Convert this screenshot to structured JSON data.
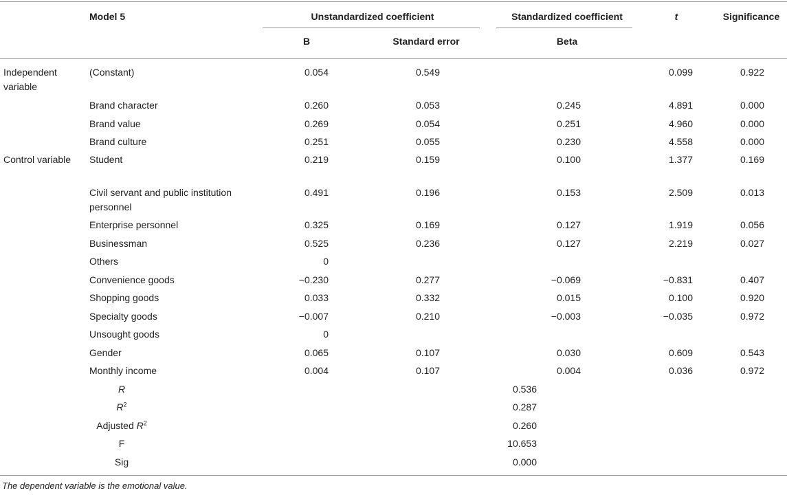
{
  "header": {
    "model": "Model 5",
    "unstd": "Unstandardized coefficient",
    "std": "Standardized coefficient",
    "t": "t",
    "sig": "Significance",
    "b": "B",
    "se": "Standard error",
    "beta": "Beta"
  },
  "groups": {
    "independent": "Independent variable",
    "control": "Control variable"
  },
  "rows": [
    {
      "label": "(Constant)",
      "b": "0.054",
      "se": "0.549",
      "beta": "",
      "t": "0.099",
      "sig": "0.922"
    },
    {
      "label": "Brand character",
      "b": "0.260",
      "se": "0.053",
      "beta": "0.245",
      "t": "4.891",
      "sig": "0.000"
    },
    {
      "label": "Brand value",
      "b": "0.269",
      "se": "0.054",
      "beta": "0.251",
      "t": "4.960",
      "sig": "0.000"
    },
    {
      "label": "Brand culture",
      "b": "0.251",
      "se": "0.055",
      "beta": "0.230",
      "t": "4.558",
      "sig": "0.000"
    },
    {
      "label": "Student",
      "b": "0.219",
      "se": "0.159",
      "beta": "0.100",
      "t": "1.377",
      "sig": "0.169"
    },
    {
      "label": "Civil servant and public institution",
      "label2": "personnel",
      "b": "0.491",
      "se": "0.196",
      "beta": "0.153",
      "t": "2.509",
      "sig": "0.013"
    },
    {
      "label": "Enterprise personnel",
      "b": "0.325",
      "se": "0.169",
      "beta": "0.127",
      "t": "1.919",
      "sig": "0.056"
    },
    {
      "label": "Businessman",
      "b": "0.525",
      "se": "0.236",
      "beta": "0.127",
      "t": "2.219",
      "sig": "0.027"
    },
    {
      "label": "Others",
      "b": "0",
      "se": "",
      "beta": "",
      "t": "",
      "sig": ""
    },
    {
      "label": "Convenience goods",
      "b": "−0.230",
      "se": "0.277",
      "beta": "−0.069",
      "t": "−0.831",
      "sig": "0.407"
    },
    {
      "label": "Shopping goods",
      "b": "0.033",
      "se": "0.332",
      "beta": "0.015",
      "t": "0.100",
      "sig": "0.920"
    },
    {
      "label": "Specialty goods",
      "b": "−0.007",
      "se": "0.210",
      "beta": "−0.003",
      "t": "−0.035",
      "sig": "0.972"
    },
    {
      "label": "Unsought goods",
      "b": "0",
      "se": "",
      "beta": "",
      "t": "",
      "sig": ""
    },
    {
      "label": "Gender",
      "b": "0.065",
      "se": "0.107",
      "beta": "0.030",
      "t": "0.609",
      "sig": "0.543"
    },
    {
      "label": "Monthly income",
      "b": "0.004",
      "se": "0.107",
      "beta": "0.004",
      "t": "0.036",
      "sig": "0.972"
    }
  ],
  "stats": [
    {
      "base": "R",
      "sup": "",
      "italic": true,
      "value": "0.536"
    },
    {
      "base": "R",
      "sup": "2",
      "italic": true,
      "value": "0.287"
    },
    {
      "prefix": "Adjusted ",
      "base": "R",
      "sup": "2",
      "italic": true,
      "value": "0.260"
    },
    {
      "base": "F",
      "sup": "",
      "italic": false,
      "value": "10.653"
    },
    {
      "base": "Sig",
      "sup": "",
      "italic": false,
      "value": "0.000"
    }
  ],
  "footnote": "The dependent variable is the emotional value."
}
